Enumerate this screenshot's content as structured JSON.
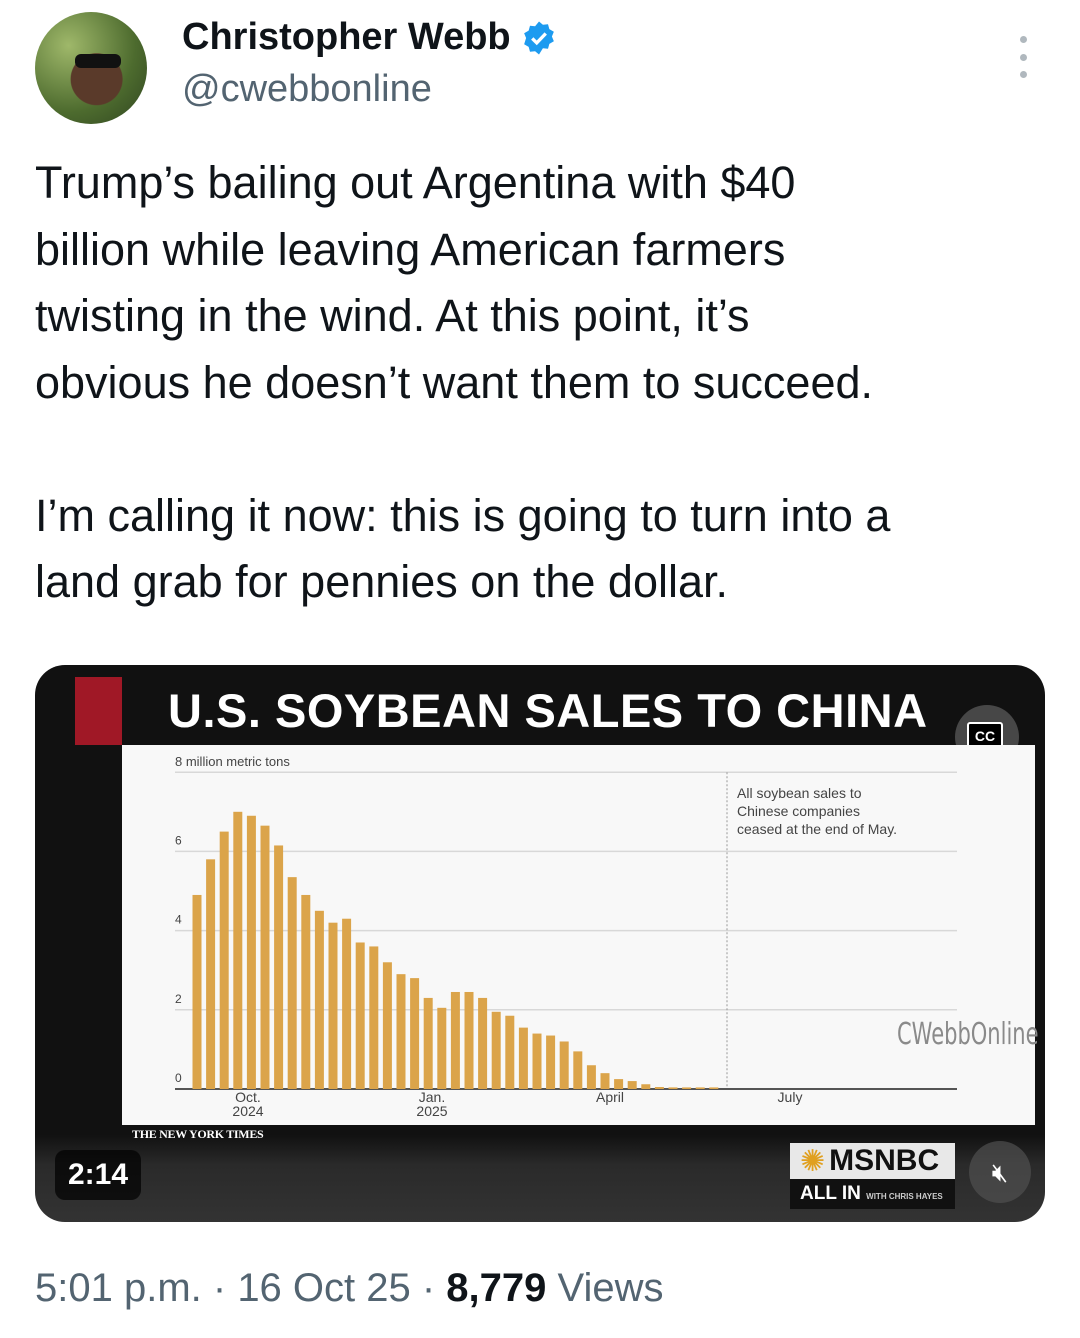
{
  "author": {
    "name": "Christopher Webb",
    "handle": "@cwebbonline",
    "verified": true
  },
  "tweet": {
    "text": "Trump’s bailing out Argentina with $40\nbillion while leaving American farmers\ntwisting in the wind. At this point, it’s\nobvious he doesn’t want them to succeed.\n\nI’m calling it now: this is going to turn into a\nland grab for pennies on the dollar."
  },
  "video": {
    "title": "U.S. SOYBEAN SALES TO CHINA",
    "watermark": "CWebbOnline",
    "cc_label": "CC",
    "source": "THE NEW YORK TIMES",
    "duration": "2:14",
    "network": "MSNBC",
    "show": "ALL IN",
    "show_with": "WITH CHRIS HAYES",
    "accent": "#a01826"
  },
  "chart_data": {
    "type": "bar",
    "ylabel": "8 million metric tons",
    "ylim": [
      0,
      8
    ],
    "yticks": [
      "0",
      "2",
      "4",
      "6"
    ],
    "xticks": [
      {
        "label": "Oct.",
        "sub": "2024"
      },
      {
        "label": "Jan.",
        "sub": "2025"
      },
      {
        "label": "April",
        "sub": ""
      },
      {
        "label": "July",
        "sub": ""
      }
    ],
    "values": [
      4.9,
      5.8,
      6.5,
      7.0,
      6.9,
      6.65,
      6.15,
      5.35,
      4.9,
      4.5,
      4.2,
      4.3,
      3.7,
      3.6,
      3.2,
      2.9,
      2.8,
      2.3,
      2.05,
      2.45,
      2.45,
      2.3,
      1.95,
      1.85,
      1.55,
      1.4,
      1.35,
      1.2,
      0.95,
      0.6,
      0.4,
      0.25,
      0.2,
      0.12,
      0.05,
      0.04,
      0.04,
      0.04,
      0.04
    ],
    "bar_color": "#dba44a",
    "annotation": [
      "All soybean sales to",
      "Chinese companies",
      "ceased at the end of May."
    ],
    "grid": true
  },
  "footer": {
    "time": "5:01 p.m.",
    "date": "16 Oct 25",
    "views": "8,779",
    "views_label": "Views",
    "sep": " · "
  }
}
